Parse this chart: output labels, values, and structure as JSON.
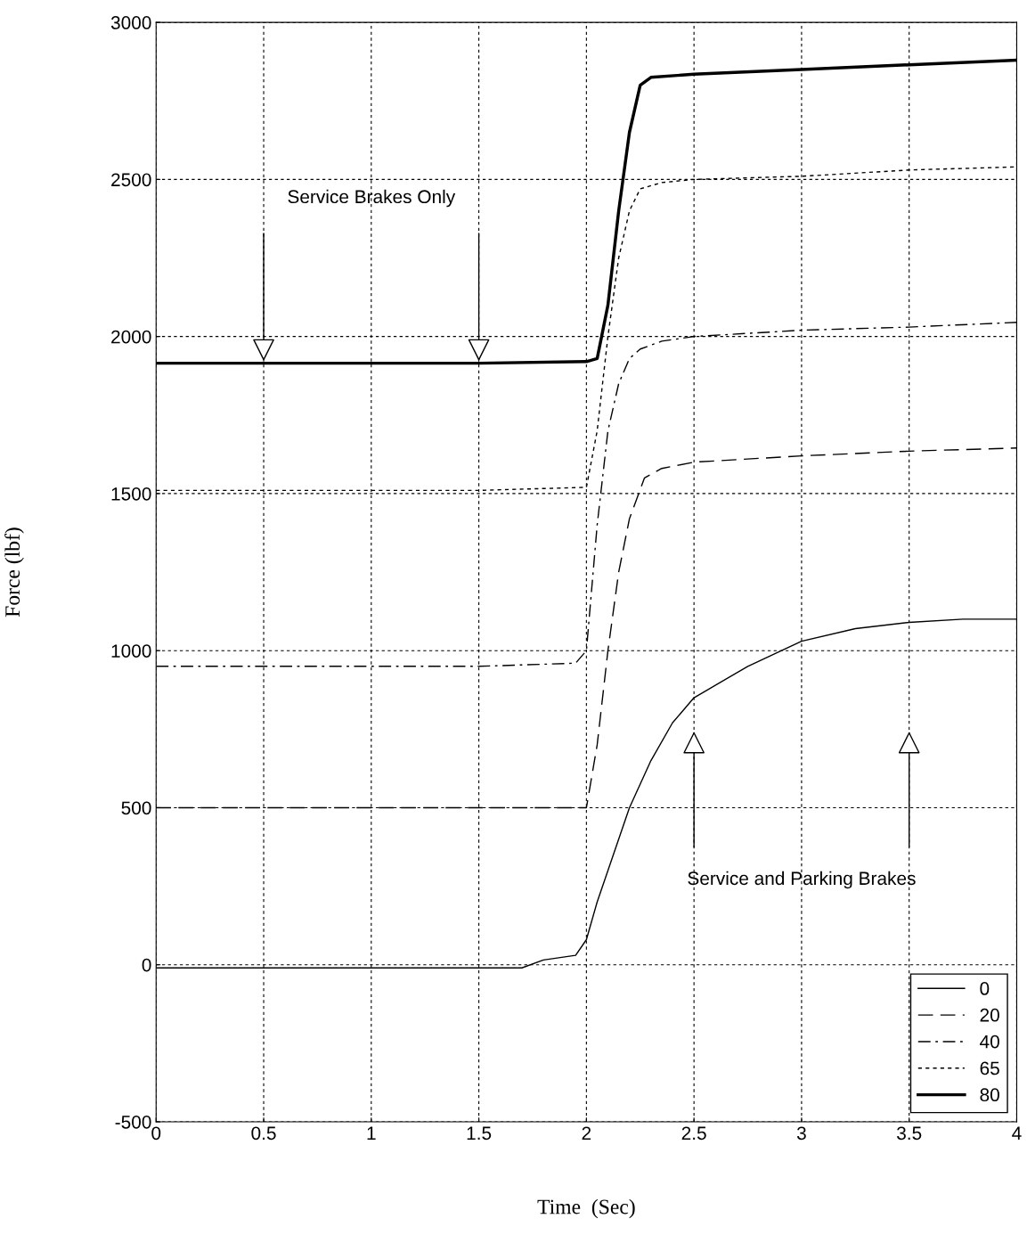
{
  "chart_data": {
    "type": "line",
    "xlabel": "Time  (Sec)",
    "ylabel": "Force (lbf)",
    "xlim": [
      0,
      4
    ],
    "ylim": [
      -500,
      3000
    ],
    "xticks": [
      0,
      0.5,
      1,
      1.5,
      2,
      2.5,
      3,
      3.5,
      4
    ],
    "yticks": [
      -500,
      0,
      500,
      1000,
      1500,
      2000,
      2500,
      3000
    ],
    "grid": true,
    "legend": "bottom right",
    "series": [
      {
        "name": "0",
        "color": "#000000",
        "line_style": "solid",
        "x": [
          0,
          0.5,
          1,
          1.5,
          1.7,
          1.8,
          1.95,
          2.0,
          2.05,
          2.1,
          2.2,
          2.3,
          2.4,
          2.5,
          2.75,
          3.0,
          3.25,
          3.5,
          3.75,
          4.0
        ],
        "values": [
          -10,
          -10,
          -10,
          -10,
          -10,
          15,
          30,
          80,
          200,
          300,
          500,
          650,
          770,
          850,
          950,
          1030,
          1070,
          1090,
          1100,
          1100
        ]
      },
      {
        "name": "20",
        "color": "#000000",
        "line_style": "dashed",
        "x": [
          0,
          0.5,
          1,
          1.5,
          2.0,
          2.05,
          2.1,
          2.15,
          2.2,
          2.27,
          2.35,
          2.5,
          3.0,
          3.5,
          4.0
        ],
        "values": [
          500,
          500,
          500,
          500,
          500,
          700,
          1000,
          1250,
          1420,
          1550,
          1580,
          1600,
          1620,
          1635,
          1645
        ]
      },
      {
        "name": "40",
        "color": "#000000",
        "line_style": "dashdot",
        "x": [
          0,
          0.5,
          1,
          1.5,
          1.95,
          2.0,
          2.05,
          2.1,
          2.15,
          2.2,
          2.25,
          2.35,
          2.5,
          3.0,
          3.5,
          4.0
        ],
        "values": [
          950,
          950,
          950,
          950,
          960,
          1000,
          1400,
          1700,
          1850,
          1930,
          1960,
          1985,
          2000,
          2020,
          2030,
          2045
        ]
      },
      {
        "name": "65",
        "color": "#000000",
        "line_style": "dotted",
        "x": [
          0,
          0.5,
          1,
          1.5,
          2.0,
          2.05,
          2.1,
          2.15,
          2.2,
          2.25,
          2.35,
          2.5,
          3.0,
          3.5,
          4.0
        ],
        "values": [
          1510,
          1510,
          1510,
          1510,
          1520,
          1700,
          2000,
          2250,
          2400,
          2470,
          2490,
          2500,
          2510,
          2530,
          2540
        ]
      },
      {
        "name": "80",
        "color": "#000000",
        "line_style": "solid",
        "x": [
          0,
          0.5,
          1,
          1.5,
          2.0,
          2.05,
          2.1,
          2.15,
          2.2,
          2.25,
          2.3,
          2.5,
          3.0,
          3.5,
          4.0
        ],
        "values": [
          1915,
          1915,
          1915,
          1915,
          1920,
          1930,
          2100,
          2400,
          2650,
          2800,
          2825,
          2835,
          2850,
          2865,
          2880
        ]
      }
    ],
    "annotations": [
      "Service Brakes Only",
      "Service and Parking Brakes"
    ]
  }
}
